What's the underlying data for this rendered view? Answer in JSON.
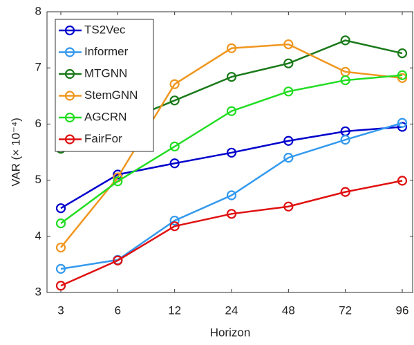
{
  "chart_data": {
    "type": "line",
    "x_label": "Horizon",
    "y_label": "VAR (× 10⁻⁴)",
    "categories": [
      "3",
      "6",
      "12",
      "24",
      "48",
      "72",
      "96"
    ],
    "ylim": [
      3,
      8
    ],
    "yticks": [
      3,
      4,
      5,
      6,
      7,
      8
    ],
    "grid": false,
    "legend": "upper-left",
    "series": [
      {
        "name": "TS2Vec",
        "color": "#0000cc",
        "values": [
          4.5,
          5.1,
          5.3,
          5.49,
          5.7,
          5.87,
          5.95
        ]
      },
      {
        "name": "Informer",
        "color": "#3399ee",
        "values": [
          3.42,
          3.58,
          4.28,
          4.73,
          5.4,
          5.72,
          6.02
        ]
      },
      {
        "name": "MTGNN",
        "color": "#1a7a1a",
        "values": [
          5.56,
          6.0,
          6.42,
          6.84,
          7.08,
          7.49,
          7.26
        ]
      },
      {
        "name": "StemGNN",
        "color": "#f0961e",
        "values": [
          3.8,
          5.05,
          6.71,
          7.35,
          7.42,
          6.93,
          6.82
        ]
      },
      {
        "name": "AGCRN",
        "color": "#22dd22",
        "values": [
          4.23,
          4.98,
          5.6,
          6.23,
          6.58,
          6.78,
          6.87
        ]
      },
      {
        "name": "FairFor",
        "color": "#e01010",
        "values": [
          3.12,
          3.57,
          4.18,
          4.4,
          4.53,
          4.79,
          4.99
        ]
      }
    ]
  }
}
